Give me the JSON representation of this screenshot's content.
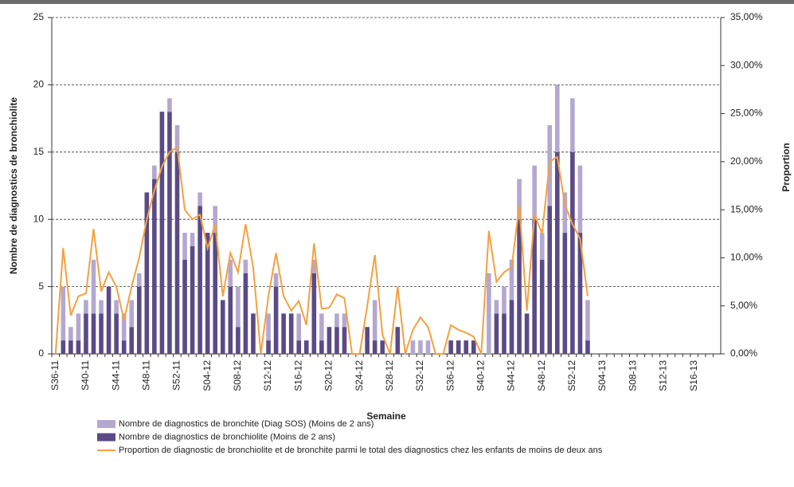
{
  "chart_data": {
    "type": "bar",
    "y_axis_label": "Nombre de diagnostics de bronchiolite",
    "y2_axis_label": "Proportion",
    "x_axis_label": "Semaine",
    "categories": [
      "S36-11",
      null,
      null,
      null,
      "S40-11",
      null,
      null,
      null,
      "S44-11",
      null,
      null,
      null,
      "S48-11",
      null,
      null,
      null,
      "S52-11",
      null,
      null,
      null,
      "S04-12",
      null,
      null,
      null,
      "S08-12",
      null,
      null,
      null,
      "S12-12",
      null,
      null,
      null,
      "S16-12",
      null,
      null,
      null,
      "S20-12",
      null,
      null,
      null,
      "S24-12",
      null,
      null,
      null,
      "S28-12",
      null,
      null,
      null,
      "S32-12",
      null,
      null,
      null,
      "S36-12",
      null,
      null,
      null,
      "S40-12",
      null,
      null,
      null,
      "S44-12",
      null,
      null,
      null,
      "S48-12",
      null,
      null,
      null,
      "S52-12",
      null,
      null,
      null,
      "S04-13",
      null,
      null,
      null,
      "S08-13",
      null,
      null,
      null,
      "S12-13",
      null,
      null,
      null,
      "S16-13",
      null,
      null,
      null
    ],
    "series": [
      {
        "name": "Nombre de diagnostics de bronchite (Diag SOS) (Moins de 2 ans)",
        "type": "bar",
        "color": "#b3a8d0",
        "values": [
          0,
          4,
          1,
          2,
          1,
          4,
          1,
          0,
          1,
          2,
          2,
          1,
          0,
          1,
          0,
          1,
          2,
          2,
          1,
          1,
          0,
          2,
          0,
          2,
          3,
          1,
          0,
          0,
          2,
          1,
          0,
          0,
          2,
          0,
          1,
          2,
          0,
          1,
          1,
          0,
          0,
          0,
          3,
          0,
          0,
          0,
          0,
          1,
          1,
          1,
          0,
          0,
          0,
          0,
          0,
          0,
          0,
          6,
          1,
          2,
          3,
          3,
          0,
          4,
          2,
          6,
          5,
          3,
          4,
          5,
          3,
          null,
          null,
          null,
          null,
          null,
          null,
          null,
          null,
          null,
          null,
          null,
          null,
          null,
          null,
          null,
          null,
          null
        ]
      },
      {
        "name": "Nombre de diagnostics de bronchiolite (Moins de 2 ans)",
        "type": "bar",
        "color": "#5a4a86",
        "values": [
          0,
          1,
          1,
          1,
          3,
          3,
          3,
          5,
          3,
          1,
          2,
          5,
          12,
          13,
          18,
          18,
          15,
          7,
          8,
          11,
          9,
          9,
          4,
          5,
          2,
          6,
          3,
          0,
          1,
          5,
          3,
          3,
          1,
          1,
          6,
          1,
          2,
          2,
          2,
          0,
          0,
          2,
          1,
          1,
          0,
          2,
          0,
          0,
          0,
          0,
          0,
          0,
          1,
          1,
          1,
          1,
          0,
          0,
          3,
          3,
          4,
          10,
          3,
          10,
          7,
          11,
          15,
          9,
          15,
          9,
          1,
          null,
          null,
          null,
          null,
          null,
          null,
          null,
          null,
          null,
          null,
          null,
          null,
          null,
          null,
          null,
          null,
          null
        ]
      },
      {
        "name": "Proportion de diagnostic de bronchiolite et de bronchite parmi le total des diagnostics chez les enfants de moins de deux ans",
        "type": "line",
        "axis": "y2",
        "color": "#f5a040",
        "values": [
          0,
          11,
          4,
          6,
          6.3,
          13,
          6.5,
          8.5,
          7,
          3.5,
          7,
          10,
          14,
          17,
          19.5,
          21,
          21.5,
          15,
          14,
          14.5,
          11,
          13.5,
          6,
          10.5,
          8.5,
          13.5,
          9,
          0,
          6,
          10.5,
          6,
          4.5,
          5.5,
          3,
          11.5,
          4.7,
          4.8,
          6.2,
          5.8,
          0,
          0,
          5,
          10.3,
          2,
          0,
          7,
          0,
          2.5,
          3.8,
          2.8,
          0,
          0,
          3,
          2.5,
          2.2,
          1.8,
          0,
          12.8,
          7.5,
          8.5,
          9,
          15.5,
          4.5,
          14.5,
          12.5,
          20,
          20.5,
          15.5,
          13.5,
          12,
          6,
          null,
          null,
          null,
          null,
          null,
          null,
          null,
          null,
          null,
          null,
          null,
          null,
          null,
          null,
          null,
          null,
          null
        ]
      }
    ],
    "ylim": [
      0,
      25
    ],
    "yticks": [
      0,
      5,
      10,
      15,
      20,
      25
    ],
    "y2lim": [
      0,
      35
    ],
    "y2ticks": [
      {
        "value": 0,
        "label": "0,00%"
      },
      {
        "value": 5,
        "label": "5,00%"
      },
      {
        "value": 10,
        "label": "10,00%"
      },
      {
        "value": 15,
        "label": "15,00%"
      },
      {
        "value": 20,
        "label": "20,00%"
      },
      {
        "value": 25,
        "label": "25,00%"
      },
      {
        "value": 30,
        "label": "30,00%"
      },
      {
        "value": 35,
        "label": "35,00%"
      }
    ],
    "grid": true,
    "legend": "bottom"
  }
}
